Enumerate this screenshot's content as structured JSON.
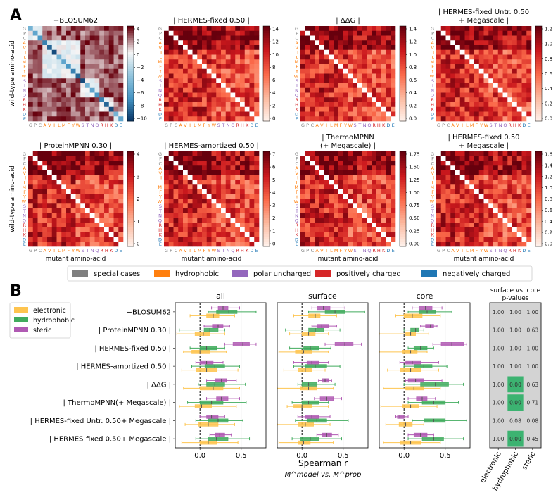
{
  "panel_labels": {
    "a": "A",
    "b": "B"
  },
  "chart_data": [
    {
      "type": "heatmap",
      "panel": "A",
      "row_axis_label": "wild-type amino-acid",
      "col_axis_label": "mutant amino-acid",
      "amino_acids": [
        "G",
        "P",
        "C",
        "A",
        "V",
        "I",
        "L",
        "M",
        "F",
        "Y",
        "W",
        "S",
        "T",
        "N",
        "Q",
        "R",
        "H",
        "K",
        "D",
        "E"
      ],
      "amino_acid_classes": [
        "special",
        "special",
        "special",
        "hydrophobic",
        "hydrophobic",
        "hydrophobic",
        "hydrophobic",
        "hydrophobic",
        "hydrophobic",
        "hydrophobic",
        "hydrophobic",
        "polar",
        "polar",
        "polar",
        "polar",
        "positive",
        "positive",
        "positive",
        "negative",
        "negative"
      ],
      "class_colors": {
        "special": "#7f7f7f",
        "hydrophobic": "#ff7f0e",
        "polar": "#9467bd",
        "positive": "#d62728",
        "negative": "#1f77b4"
      },
      "panels": [
        {
          "title_lines": [
            "−BLOSUM62"
          ],
          "scale": "diverging",
          "vmin": -11,
          "vmax": 4,
          "colorbar_ticks": [
            "4",
            "2",
            "0",
            "−2",
            "−4",
            "−6",
            "−8",
            "−10"
          ]
        },
        {
          "title_lines": [
            "| HERMES-fixed 0.50 |"
          ],
          "scale": "sequential",
          "vmin": 0,
          "vmax": 15,
          "colorbar_ticks": [
            "14",
            "12",
            "10",
            "8",
            "6",
            "4",
            "2",
            "0"
          ]
        },
        {
          "title_lines": [
            "| ΔΔG |"
          ],
          "scale": "sequential",
          "vmin": 0,
          "vmax": 1.55,
          "colorbar_ticks": [
            "1.4",
            "1.2",
            "1.0",
            "0.8",
            "0.6",
            "0.4",
            "0.2",
            "0.0"
          ]
        },
        {
          "title_lines": [
            "| HERMES-fixed Untr. 0.50",
            "+ Megascale |"
          ],
          "scale": "sequential",
          "vmin": 0,
          "vmax": 1.35,
          "colorbar_ticks": [
            "1.2",
            "1.0",
            "0.8",
            "0.6",
            "0.4",
            "0.2",
            "0.0"
          ]
        },
        {
          "title_lines": [
            "| ProteinMPNN 0.30 |"
          ],
          "scale": "sequential",
          "vmin": 0,
          "vmax": 4.8,
          "colorbar_ticks": [
            "4",
            "3",
            "2",
            "1",
            "0"
          ]
        },
        {
          "title_lines": [
            "| HERMES-amortized 0.50 |"
          ],
          "scale": "sequential",
          "vmin": 0,
          "vmax": 7.6,
          "colorbar_ticks": [
            "7",
            "6",
            "5",
            "4",
            "3",
            "2",
            "1",
            "0"
          ]
        },
        {
          "title_lines": [
            "| ThermoMPNN",
            "(+ Megascale) |"
          ],
          "scale": "sequential",
          "vmin": 0,
          "vmax": 1.85,
          "colorbar_ticks": [
            "1.75",
            "1.50",
            "1.25",
            "1.00",
            "0.75",
            "0.50",
            "0.25",
            "0.00"
          ]
        },
        {
          "title_lines": [
            "| HERMES-fixed 0.50",
            "+ Megascale |"
          ],
          "scale": "sequential",
          "vmin": 0,
          "vmax": 1.7,
          "colorbar_ticks": [
            "1.6",
            "1.4",
            "1.2",
            "1.0",
            "0.8",
            "0.6",
            "0.4",
            "0.2",
            "0.0"
          ]
        }
      ],
      "legend": [
        {
          "label": "special cases",
          "color": "#7f7f7f"
        },
        {
          "label": "hydrophobic",
          "color": "#ff7f0e"
        },
        {
          "label": "polar uncharged",
          "color": "#9467bd"
        },
        {
          "label": "positively charged",
          "color": "#d62728"
        },
        {
          "label": "negatively charged",
          "color": "#1f77b4"
        }
      ]
    },
    {
      "type": "box",
      "panel": "B",
      "facets": [
        "all",
        "surface",
        "core"
      ],
      "models": [
        "−BLOSUM62",
        "| ProteinMPNN 0.30 |",
        "| HERMES-fixed 0.50 |",
        "| HERMES-amortized 0.50 |",
        "| ΔΔG |",
        "| ThermoMPNN(+ Megascale) |",
        "| HERMES-fixed Untr. 0.50+ Megascale |",
        "| HERMES-fixed 0.50+ Megascale |"
      ],
      "xlim": [
        -0.3,
        0.8
      ],
      "xticks": [
        0.0,
        0.5
      ],
      "xtick_labels": [
        "0.0",
        "0.5"
      ],
      "xlabel": "Spearman r",
      "xlabel_sub": "M^model vs. M^prop",
      "series": [
        {
          "name": "electronic",
          "color": "#fec44f"
        },
        {
          "name": "hydrophobic",
          "color": "#41ab5d"
        },
        {
          "name": "steric",
          "color": "#b05ab3"
        }
      ],
      "data": {
        "all": [
          [
            [
              -0.12,
              0.08,
              0.16,
              0.23,
              0.42
            ],
            [
              0.1,
              0.2,
              0.35,
              0.45,
              0.68
            ],
            [
              0.14,
              0.22,
              0.28,
              0.34,
              0.48
            ]
          ],
          [
            [
              -0.28,
              -0.06,
              0.04,
              0.12,
              0.3
            ],
            [
              -0.25,
              0.05,
              0.12,
              0.22,
              0.3
            ],
            [
              0.05,
              0.15,
              0.22,
              0.28,
              0.36
            ]
          ],
          [
            [
              -0.2,
              -0.1,
              0.0,
              0.12,
              0.32
            ],
            [
              -0.12,
              0.0,
              0.08,
              0.2,
              0.3
            ],
            [
              0.3,
              0.4,
              0.52,
              0.6,
              0.68
            ]
          ],
          [
            [
              -0.22,
              -0.05,
              0.08,
              0.2,
              0.46
            ],
            [
              -0.1,
              0.06,
              0.18,
              0.3,
              0.48
            ],
            [
              -0.05,
              0.0,
              0.08,
              0.16,
              0.28
            ]
          ],
          [
            [
              -0.2,
              0.0,
              0.16,
              0.28,
              0.48
            ],
            [
              -0.02,
              0.08,
              0.18,
              0.3,
              0.55
            ],
            [
              0.08,
              0.18,
              0.26,
              0.32,
              0.44
            ]
          ],
          [
            [
              -0.25,
              -0.06,
              0.02,
              0.14,
              0.44
            ],
            [
              -0.15,
              0.0,
              0.14,
              0.28,
              0.56
            ],
            [
              0.08,
              0.2,
              0.26,
              0.34,
              0.48
            ]
          ],
          [
            [
              -0.18,
              -0.02,
              0.1,
              0.22,
              0.42
            ],
            [
              -0.05,
              0.1,
              0.22,
              0.34,
              0.52
            ],
            [
              0.0,
              0.08,
              0.14,
              0.22,
              0.3
            ]
          ],
          [
            [
              -0.22,
              0.0,
              0.1,
              0.2,
              0.46
            ],
            [
              -0.05,
              0.1,
              0.2,
              0.34,
              0.6
            ],
            [
              0.12,
              0.18,
              0.24,
              0.3,
              0.38
            ]
          ]
        ],
        "surface": [
          [
            [
              -0.1,
              0.08,
              0.16,
              0.22,
              0.42
            ],
            [
              0.08,
              0.28,
              0.4,
              0.52,
              0.76
            ],
            [
              0.12,
              0.18,
              0.26,
              0.34,
              0.52
            ]
          ],
          [
            [
              -0.15,
              0.0,
              0.08,
              0.16,
              0.32
            ],
            [
              -0.2,
              0.08,
              0.16,
              0.26,
              0.46
            ],
            [
              0.12,
              0.18,
              0.24,
              0.32,
              0.42
            ]
          ],
          [
            [
              -0.28,
              -0.08,
              0.02,
              0.12,
              0.32
            ],
            [
              -0.15,
              0.02,
              0.1,
              0.2,
              0.35
            ],
            [
              0.28,
              0.4,
              0.52,
              0.62,
              0.72
            ]
          ],
          [
            [
              -0.22,
              -0.05,
              0.04,
              0.12,
              0.28
            ],
            [
              -0.1,
              0.04,
              0.16,
              0.3,
              0.46
            ],
            [
              -0.1,
              0.06,
              0.12,
              0.2,
              0.32
            ]
          ],
          [
            [
              -0.3,
              -0.02,
              0.08,
              0.18,
              0.38
            ],
            [
              -0.05,
              0.0,
              0.08,
              0.18,
              0.4
            ],
            [
              0.2,
              0.24,
              0.28,
              0.32,
              0.36
            ]
          ],
          [
            [
              -0.18,
              -0.1,
              0.0,
              0.12,
              0.32
            ],
            [
              -0.12,
              0.0,
              0.08,
              0.2,
              0.32
            ],
            [
              0.15,
              0.22,
              0.3,
              0.38,
              0.48
            ]
          ],
          [
            [
              -0.3,
              -0.05,
              0.04,
              0.14,
              0.34
            ],
            [
              -0.08,
              0.06,
              0.18,
              0.3,
              0.56
            ],
            [
              -0.05,
              0.04,
              0.12,
              0.2,
              0.34
            ]
          ],
          [
            [
              -0.28,
              -0.05,
              0.02,
              0.1,
              0.38
            ],
            [
              -0.12,
              -0.02,
              0.1,
              0.2,
              0.48
            ],
            [
              0.18,
              0.24,
              0.3,
              0.36,
              0.44
            ]
          ]
        ],
        "core": [
          [
            [
              -0.1,
              0.0,
              0.1,
              0.22,
              0.44
            ],
            [
              0.05,
              0.18,
              0.28,
              0.38,
              0.58
            ],
            [
              0.1,
              0.18,
              0.26,
              0.34,
              0.46
            ]
          ],
          [
            [
              -0.3,
              0.02,
              0.08,
              0.14,
              0.3
            ],
            [
              0.0,
              0.08,
              0.14,
              0.18,
              0.24
            ],
            [
              0.2,
              0.26,
              0.32,
              0.36,
              0.4
            ]
          ],
          [
            [
              -0.3,
              -0.02,
              0.08,
              0.16,
              0.28
            ],
            [
              0.05,
              0.12,
              0.2,
              0.28,
              0.36
            ],
            [
              0.35,
              0.45,
              0.58,
              0.72,
              0.76
            ]
          ],
          [
            [
              -0.2,
              -0.05,
              0.08,
              0.2,
              0.42
            ],
            [
              0.0,
              0.12,
              0.24,
              0.34,
              0.52
            ],
            [
              -0.05,
              0.02,
              0.1,
              0.2,
              0.42
            ]
          ],
          [
            [
              -0.25,
              0.02,
              0.12,
              0.24,
              0.44
            ],
            [
              0.0,
              0.2,
              0.38,
              0.54,
              0.72
            ],
            [
              0.02,
              0.05,
              0.14,
              0.24,
              0.46
            ]
          ],
          [
            [
              -0.28,
              -0.02,
              0.08,
              0.18,
              0.4
            ],
            [
              0.05,
              0.22,
              0.36,
              0.5,
              0.66
            ],
            [
              0.05,
              0.15,
              0.22,
              0.28,
              0.38
            ]
          ],
          [
            [
              -0.22,
              -0.06,
              0.02,
              0.1,
              0.24
            ],
            [
              0.1,
              0.24,
              0.36,
              0.5,
              0.76
            ],
            [
              -0.1,
              -0.08,
              -0.05,
              0.0,
              0.05
            ]
          ],
          [
            [
              -0.25,
              -0.05,
              0.08,
              0.2,
              0.44
            ],
            [
              0.05,
              0.22,
              0.36,
              0.48,
              0.72
            ],
            [
              0.05,
              0.12,
              0.2,
              0.28,
              0.36
            ]
          ]
        ]
      },
      "pvalues": {
        "title_lines": [
          "surface vs. core",
          "p-values"
        ],
        "columns": [
          "electronic",
          "hydrophobic",
          "steric"
        ],
        "rows": [
          [
            "1.00",
            "1.00",
            "1.00"
          ],
          [
            "1.00",
            "1.00",
            "0.63"
          ],
          [
            "1.00",
            "1.00",
            "1.00"
          ],
          [
            "1.00",
            "1.00",
            "1.00"
          ],
          [
            "1.00",
            "0.00",
            "0.63"
          ],
          [
            "1.00",
            "0.00",
            "0.71"
          ],
          [
            "1.00",
            "0.08",
            "0.08"
          ],
          [
            "1.00",
            "0.00",
            "0.45"
          ]
        ],
        "significant_color": "#3cb371",
        "background_color": "#d3d3d3"
      }
    }
  ]
}
